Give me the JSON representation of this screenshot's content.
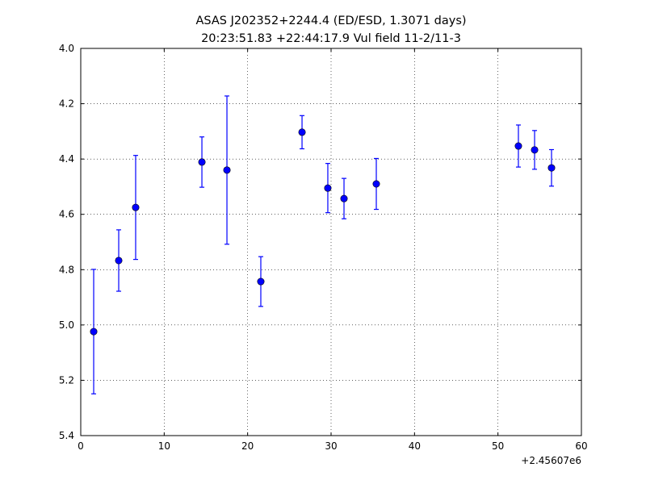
{
  "chart_data": {
    "type": "errorbar",
    "title": "ASAS J202352+2244.4 (ED/ESD, 1.3071 days)",
    "subtitle": "20:23:51.83 +22:44:17.9 Vul field 11-2/11-3",
    "x_offset_label": "+2.45607e6",
    "x": [
      1.55,
      4.55,
      6.58,
      14.52,
      17.52,
      21.58,
      26.52,
      29.61,
      31.55,
      35.42,
      52.45,
      54.39,
      56.42
    ],
    "values": [
      5.024,
      4.767,
      4.575,
      4.411,
      4.44,
      4.843,
      4.303,
      4.505,
      4.543,
      4.49,
      4.353,
      4.367,
      4.432
    ],
    "errors": [
      0.225,
      0.111,
      0.188,
      0.091,
      0.268,
      0.09,
      0.06,
      0.089,
      0.073,
      0.092,
      0.076,
      0.07,
      0.066
    ],
    "color": "#0000ff",
    "xlim": [
      0,
      60
    ],
    "xticks": [
      0,
      10,
      20,
      30,
      40,
      50,
      60
    ],
    "ylim": [
      4.0,
      5.4
    ],
    "y_inverted": true,
    "yticks": [
      {
        "value": 4,
        "label": "4.0"
      },
      4.2,
      4.4,
      4.6,
      4.8,
      {
        "value": 5,
        "label": "5.0"
      },
      5.2,
      5.4
    ],
    "grid": true
  }
}
